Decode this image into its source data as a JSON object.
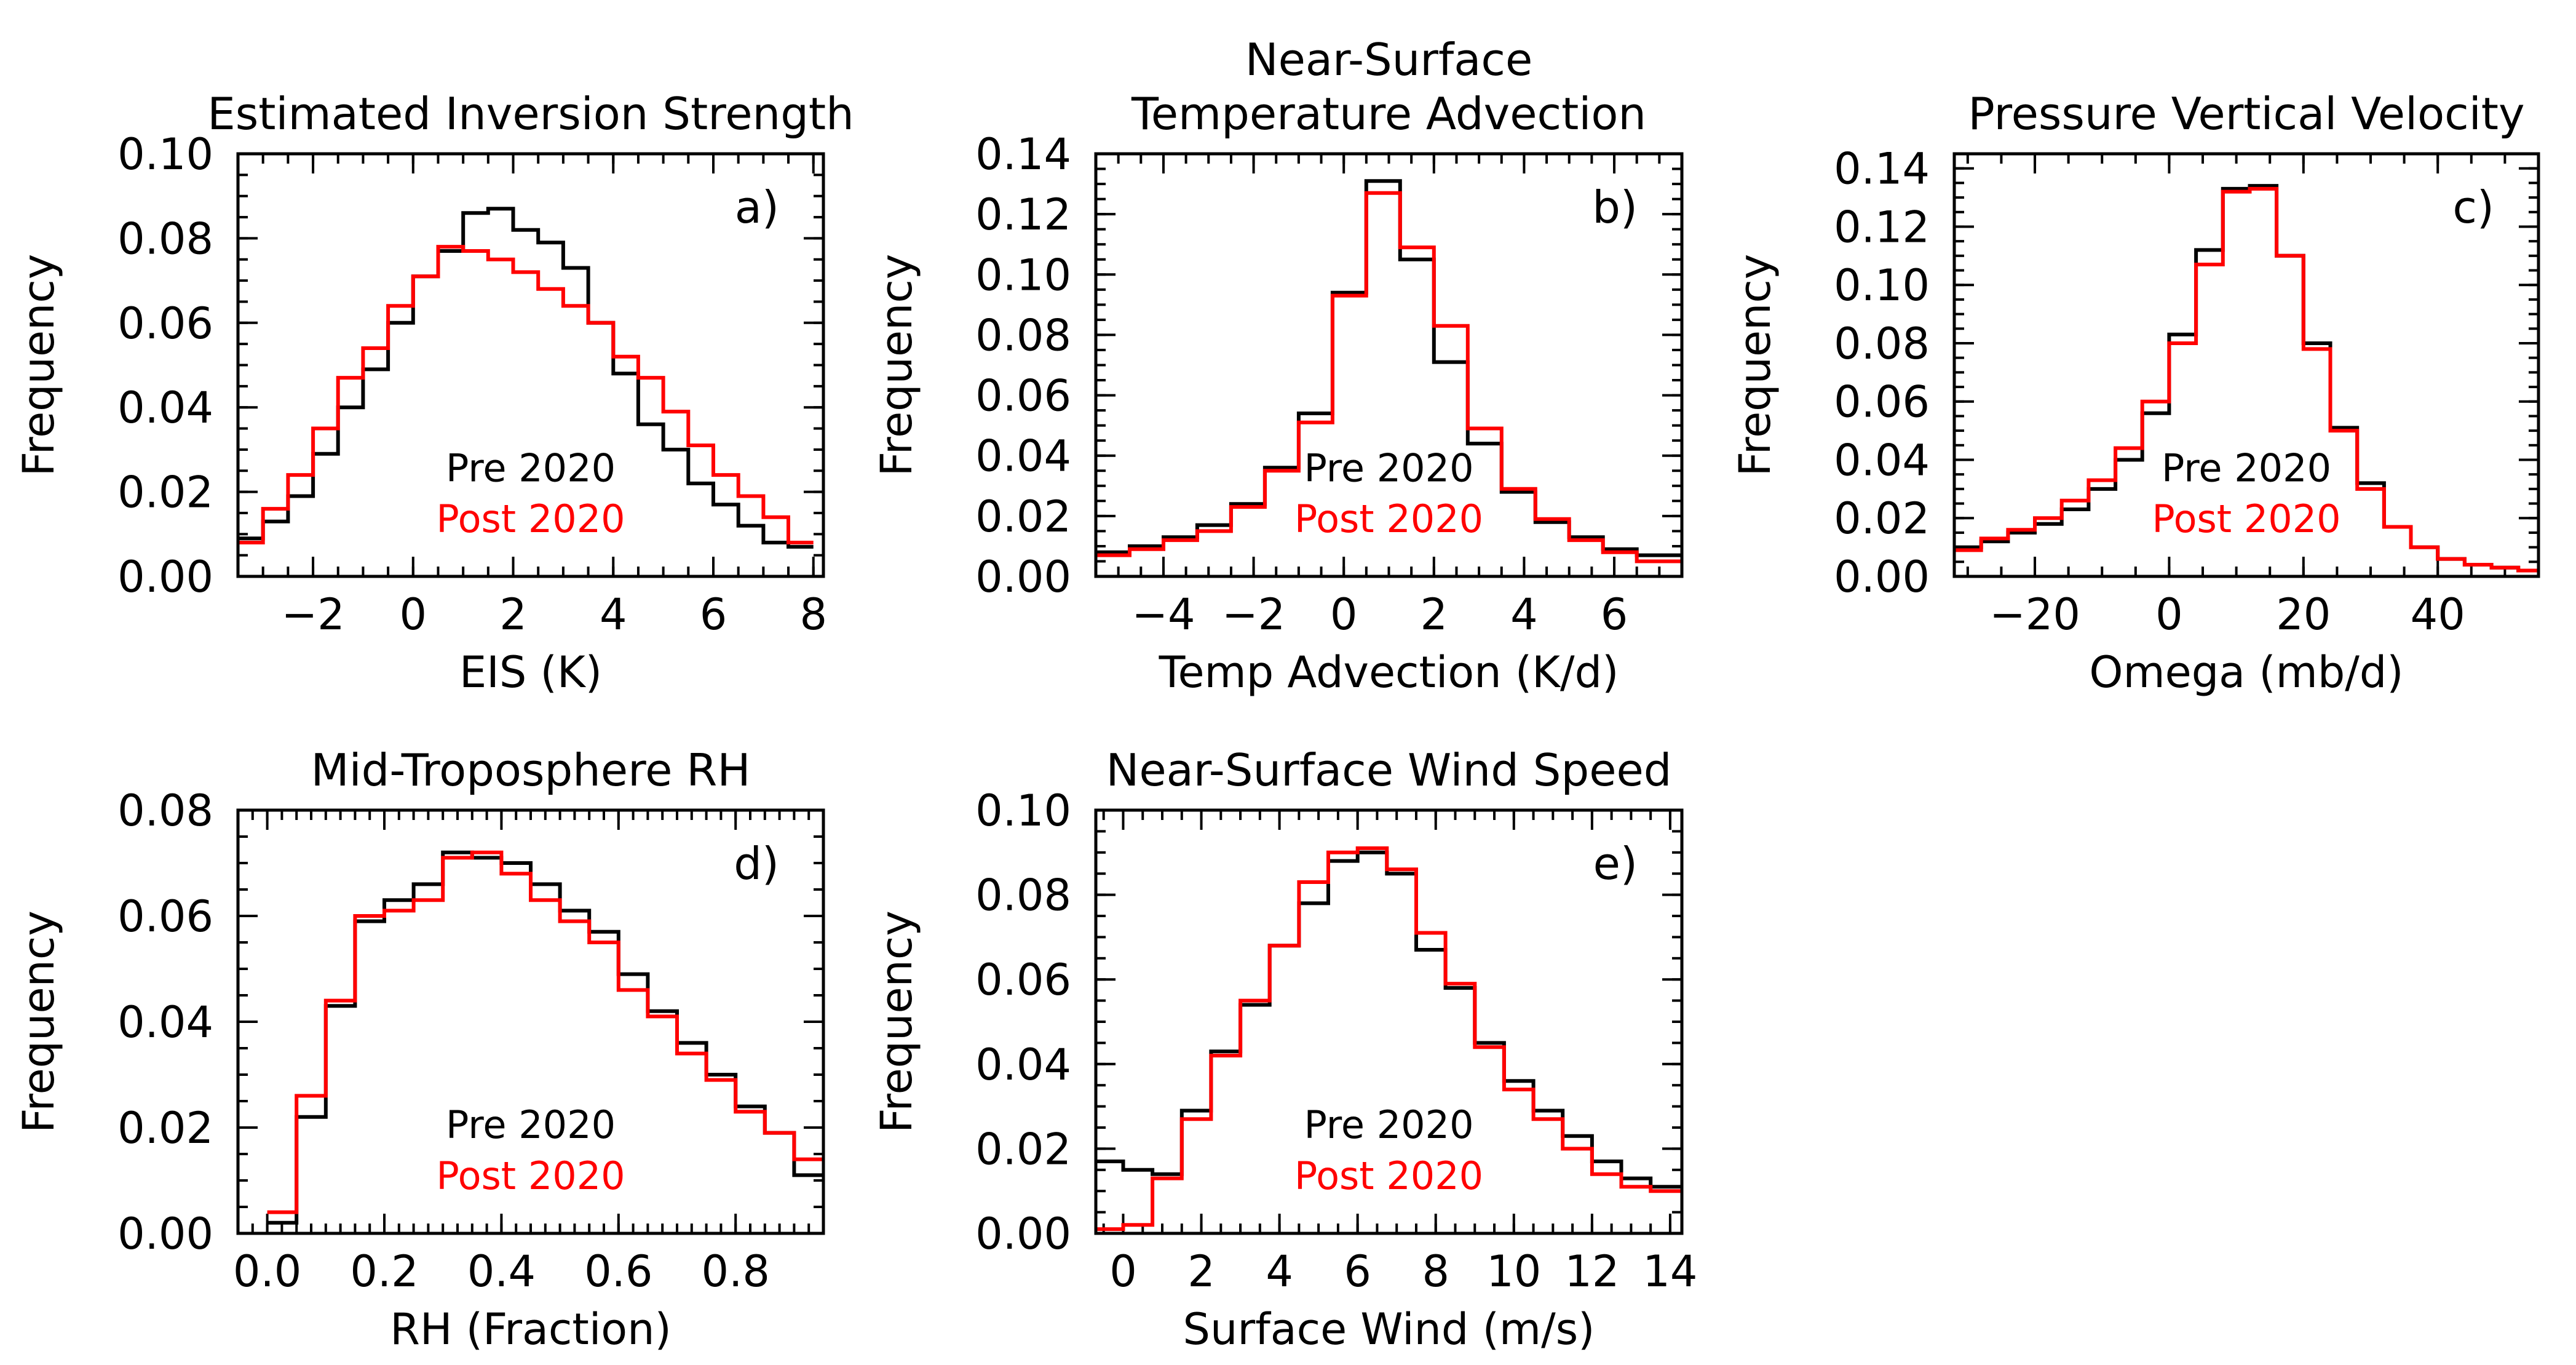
{
  "figure": {
    "legend": {
      "pre_label": "Pre 2020",
      "post_label": "Post 2020"
    },
    "colors": {
      "pre": "#000000",
      "post": "#ff0000",
      "axes": "#000000",
      "background": "#ffffff"
    }
  },
  "chart_data": [
    {
      "type": "histogram-step",
      "panel_label": "a)",
      "title": [
        "Estimated Inversion Strength"
      ],
      "xlabel": "EIS (K)",
      "ylabel": "Frequency",
      "xlim": [
        -3.5,
        8.2
      ],
      "ylim": [
        0,
        0.1
      ],
      "xticks": [
        -2,
        0,
        2,
        4,
        6,
        8
      ],
      "xminor_step": 0.5,
      "yticks": [
        0,
        0.02,
        0.04,
        0.06,
        0.08,
        0.1
      ],
      "yminor_step": 0.005,
      "ydecimals": 2,
      "legend_position": "lower-center",
      "bin_edges": [
        -3.5,
        -3.0,
        -2.5,
        -2.0,
        -1.5,
        -1.0,
        -0.5,
        0.0,
        0.5,
        1.0,
        1.5,
        2.0,
        2.5,
        3.0,
        3.5,
        4.0,
        4.5,
        5.0,
        5.5,
        6.0,
        6.5,
        7.0,
        7.5,
        8.0,
        8.2
      ],
      "series": [
        {
          "name": "Pre 2020",
          "color": "#000000",
          "values": [
            0.009,
            0.013,
            0.019,
            0.029,
            0.04,
            0.049,
            0.06,
            0.071,
            0.077,
            0.086,
            0.087,
            0.082,
            0.079,
            0.073,
            0.06,
            0.048,
            0.036,
            0.03,
            0.022,
            0.017,
            0.012,
            0.008,
            0.007
          ]
        },
        {
          "name": "Post 2020",
          "color": "#ff0000",
          "values": [
            0.008,
            0.016,
            0.024,
            0.035,
            0.047,
            0.054,
            0.064,
            0.071,
            0.078,
            0.077,
            0.075,
            0.072,
            0.068,
            0.064,
            0.06,
            0.052,
            0.047,
            0.039,
            0.031,
            0.024,
            0.019,
            0.014,
            0.008
          ]
        }
      ]
    },
    {
      "type": "histogram-step",
      "panel_label": "b)",
      "title": [
        "Near-Surface",
        "Temperature Advection"
      ],
      "xlabel": "Temp Advection (K/d)",
      "ylabel": "Frequency",
      "xlim": [
        -5.5,
        7.5
      ],
      "ylim": [
        0,
        0.14
      ],
      "xticks": [
        -4,
        -2,
        0,
        2,
        4,
        6
      ],
      "xminor_step": 0.5,
      "yticks": [
        0,
        0.02,
        0.04,
        0.06,
        0.08,
        0.1,
        0.12,
        0.14
      ],
      "yminor_step": 0.005,
      "ydecimals": 2,
      "legend_position": "lower-center",
      "bin_edges": [
        -5.5,
        -4.75,
        -4.0,
        -3.25,
        -2.5,
        -1.75,
        -1.0,
        -0.25,
        0.5,
        1.25,
        2.0,
        2.75,
        3.5,
        4.25,
        5.0,
        5.75,
        6.5,
        7.5
      ],
      "series": [
        {
          "name": "Pre 2020",
          "color": "#000000",
          "values": [
            0.008,
            0.01,
            0.013,
            0.017,
            0.024,
            0.036,
            0.054,
            0.094,
            0.131,
            0.105,
            0.071,
            0.044,
            0.028,
            0.018,
            0.013,
            0.009,
            0.007
          ]
        },
        {
          "name": "Post 2020",
          "color": "#ff0000",
          "values": [
            0.007,
            0.009,
            0.012,
            0.015,
            0.023,
            0.035,
            0.051,
            0.093,
            0.127,
            0.109,
            0.083,
            0.049,
            0.029,
            0.019,
            0.012,
            0.008,
            0.005
          ]
        }
      ]
    },
    {
      "type": "histogram-step",
      "panel_label": "c)",
      "title": [
        "Pressure Vertical Velocity"
      ],
      "xlabel": "Omega (mb/d)",
      "ylabel": "Frequency",
      "xlim": [
        -32,
        55
      ],
      "ylim": [
        0,
        0.145
      ],
      "xticks": [
        -20,
        0,
        20,
        40
      ],
      "xminor_step": 5,
      "yticks": [
        0,
        0.02,
        0.04,
        0.06,
        0.08,
        0.1,
        0.12,
        0.14
      ],
      "yminor_step": 0.005,
      "ydecimals": 2,
      "legend_position": "lower-center",
      "bin_edges": [
        -32,
        -28,
        -24,
        -20,
        -16,
        -12,
        -8,
        -4,
        0,
        4,
        8,
        12,
        16,
        20,
        24,
        28,
        32,
        36,
        40,
        44,
        48,
        52,
        55
      ],
      "series": [
        {
          "name": "Pre 2020",
          "color": "#000000",
          "values": [
            0.01,
            0.012,
            0.015,
            0.018,
            0.023,
            0.03,
            0.04,
            0.056,
            0.083,
            0.112,
            0.133,
            0.134,
            0.11,
            0.08,
            0.051,
            0.032,
            0.017,
            0.01,
            0.006,
            0.004,
            0.003,
            0.002
          ]
        },
        {
          "name": "Post 2020",
          "color": "#ff0000",
          "values": [
            0.009,
            0.013,
            0.016,
            0.02,
            0.026,
            0.033,
            0.044,
            0.06,
            0.08,
            0.107,
            0.132,
            0.133,
            0.11,
            0.078,
            0.05,
            0.03,
            0.017,
            0.01,
            0.006,
            0.004,
            0.003,
            0.002
          ]
        }
      ]
    },
    {
      "type": "histogram-step",
      "panel_label": "d)",
      "title": [
        "Mid-Troposphere RH"
      ],
      "xlabel": "RH (Fraction)",
      "ylabel": "Frequency",
      "xlim": [
        -0.05,
        0.95
      ],
      "ylim": [
        0,
        0.08
      ],
      "xticks": [
        0,
        0.2,
        0.4,
        0.6,
        0.8
      ],
      "xticklabels": [
        "0.0",
        "0.2",
        "0.4",
        "0.6",
        "0.8"
      ],
      "xminor_step": 0.025,
      "yticks": [
        0,
        0.02,
        0.04,
        0.06,
        0.08
      ],
      "yminor_step": 0.005,
      "ydecimals": 2,
      "legend_position": "lower-center",
      "bin_edges": [
        0.0,
        0.05,
        0.1,
        0.15,
        0.2,
        0.25,
        0.3,
        0.35,
        0.4,
        0.45,
        0.5,
        0.55,
        0.6,
        0.65,
        0.7,
        0.75,
        0.8,
        0.85,
        0.9,
        0.95
      ],
      "series": [
        {
          "name": "Pre 2020",
          "color": "#000000",
          "values": [
            0.002,
            0.022,
            0.043,
            0.059,
            0.063,
            0.066,
            0.072,
            0.071,
            0.07,
            0.066,
            0.061,
            0.057,
            0.049,
            0.042,
            0.036,
            0.03,
            0.024,
            0.019,
            0.011
          ]
        },
        {
          "name": "Post 2020",
          "color": "#ff0000",
          "values": [
            0.004,
            0.026,
            0.044,
            0.06,
            0.061,
            0.063,
            0.071,
            0.072,
            0.068,
            0.063,
            0.059,
            0.055,
            0.046,
            0.041,
            0.034,
            0.029,
            0.023,
            0.019,
            0.014
          ]
        }
      ]
    },
    {
      "type": "histogram-step",
      "panel_label": "e)",
      "title": [
        "Near-Surface Wind Speed"
      ],
      "xlabel": "Surface Wind (m/s)",
      "ylabel": "Frequency",
      "xlim": [
        -0.7,
        14.3
      ],
      "ylim": [
        0,
        0.1
      ],
      "xticks": [
        0,
        2,
        4,
        6,
        8,
        10,
        12,
        14
      ],
      "xminor_step": 0.5,
      "yticks": [
        0,
        0.02,
        0.04,
        0.06,
        0.08,
        0.1
      ],
      "yminor_step": 0.005,
      "ydecimals": 2,
      "legend_position": "lower-center",
      "bin_edges": [
        -0.7,
        0.0,
        0.75,
        1.5,
        2.25,
        3.0,
        3.75,
        4.5,
        5.25,
        6.0,
        6.75,
        7.5,
        8.25,
        9.0,
        9.75,
        10.5,
        11.25,
        12.0,
        12.75,
        13.5,
        14.3
      ],
      "series": [
        {
          "name": "Pre 2020",
          "color": "#000000",
          "values": [
            0.017,
            0.015,
            0.014,
            0.029,
            0.043,
            0.054,
            0.068,
            0.078,
            0.088,
            0.09,
            0.085,
            0.067,
            0.058,
            0.045,
            0.036,
            0.029,
            0.023,
            0.017,
            0.013,
            0.011
          ]
        },
        {
          "name": "Post 2020",
          "color": "#ff0000",
          "values": [
            0.001,
            0.002,
            0.013,
            0.027,
            0.042,
            0.055,
            0.068,
            0.083,
            0.09,
            0.091,
            0.086,
            0.071,
            0.059,
            0.044,
            0.034,
            0.027,
            0.02,
            0.014,
            0.011,
            0.01
          ]
        }
      ]
    }
  ]
}
